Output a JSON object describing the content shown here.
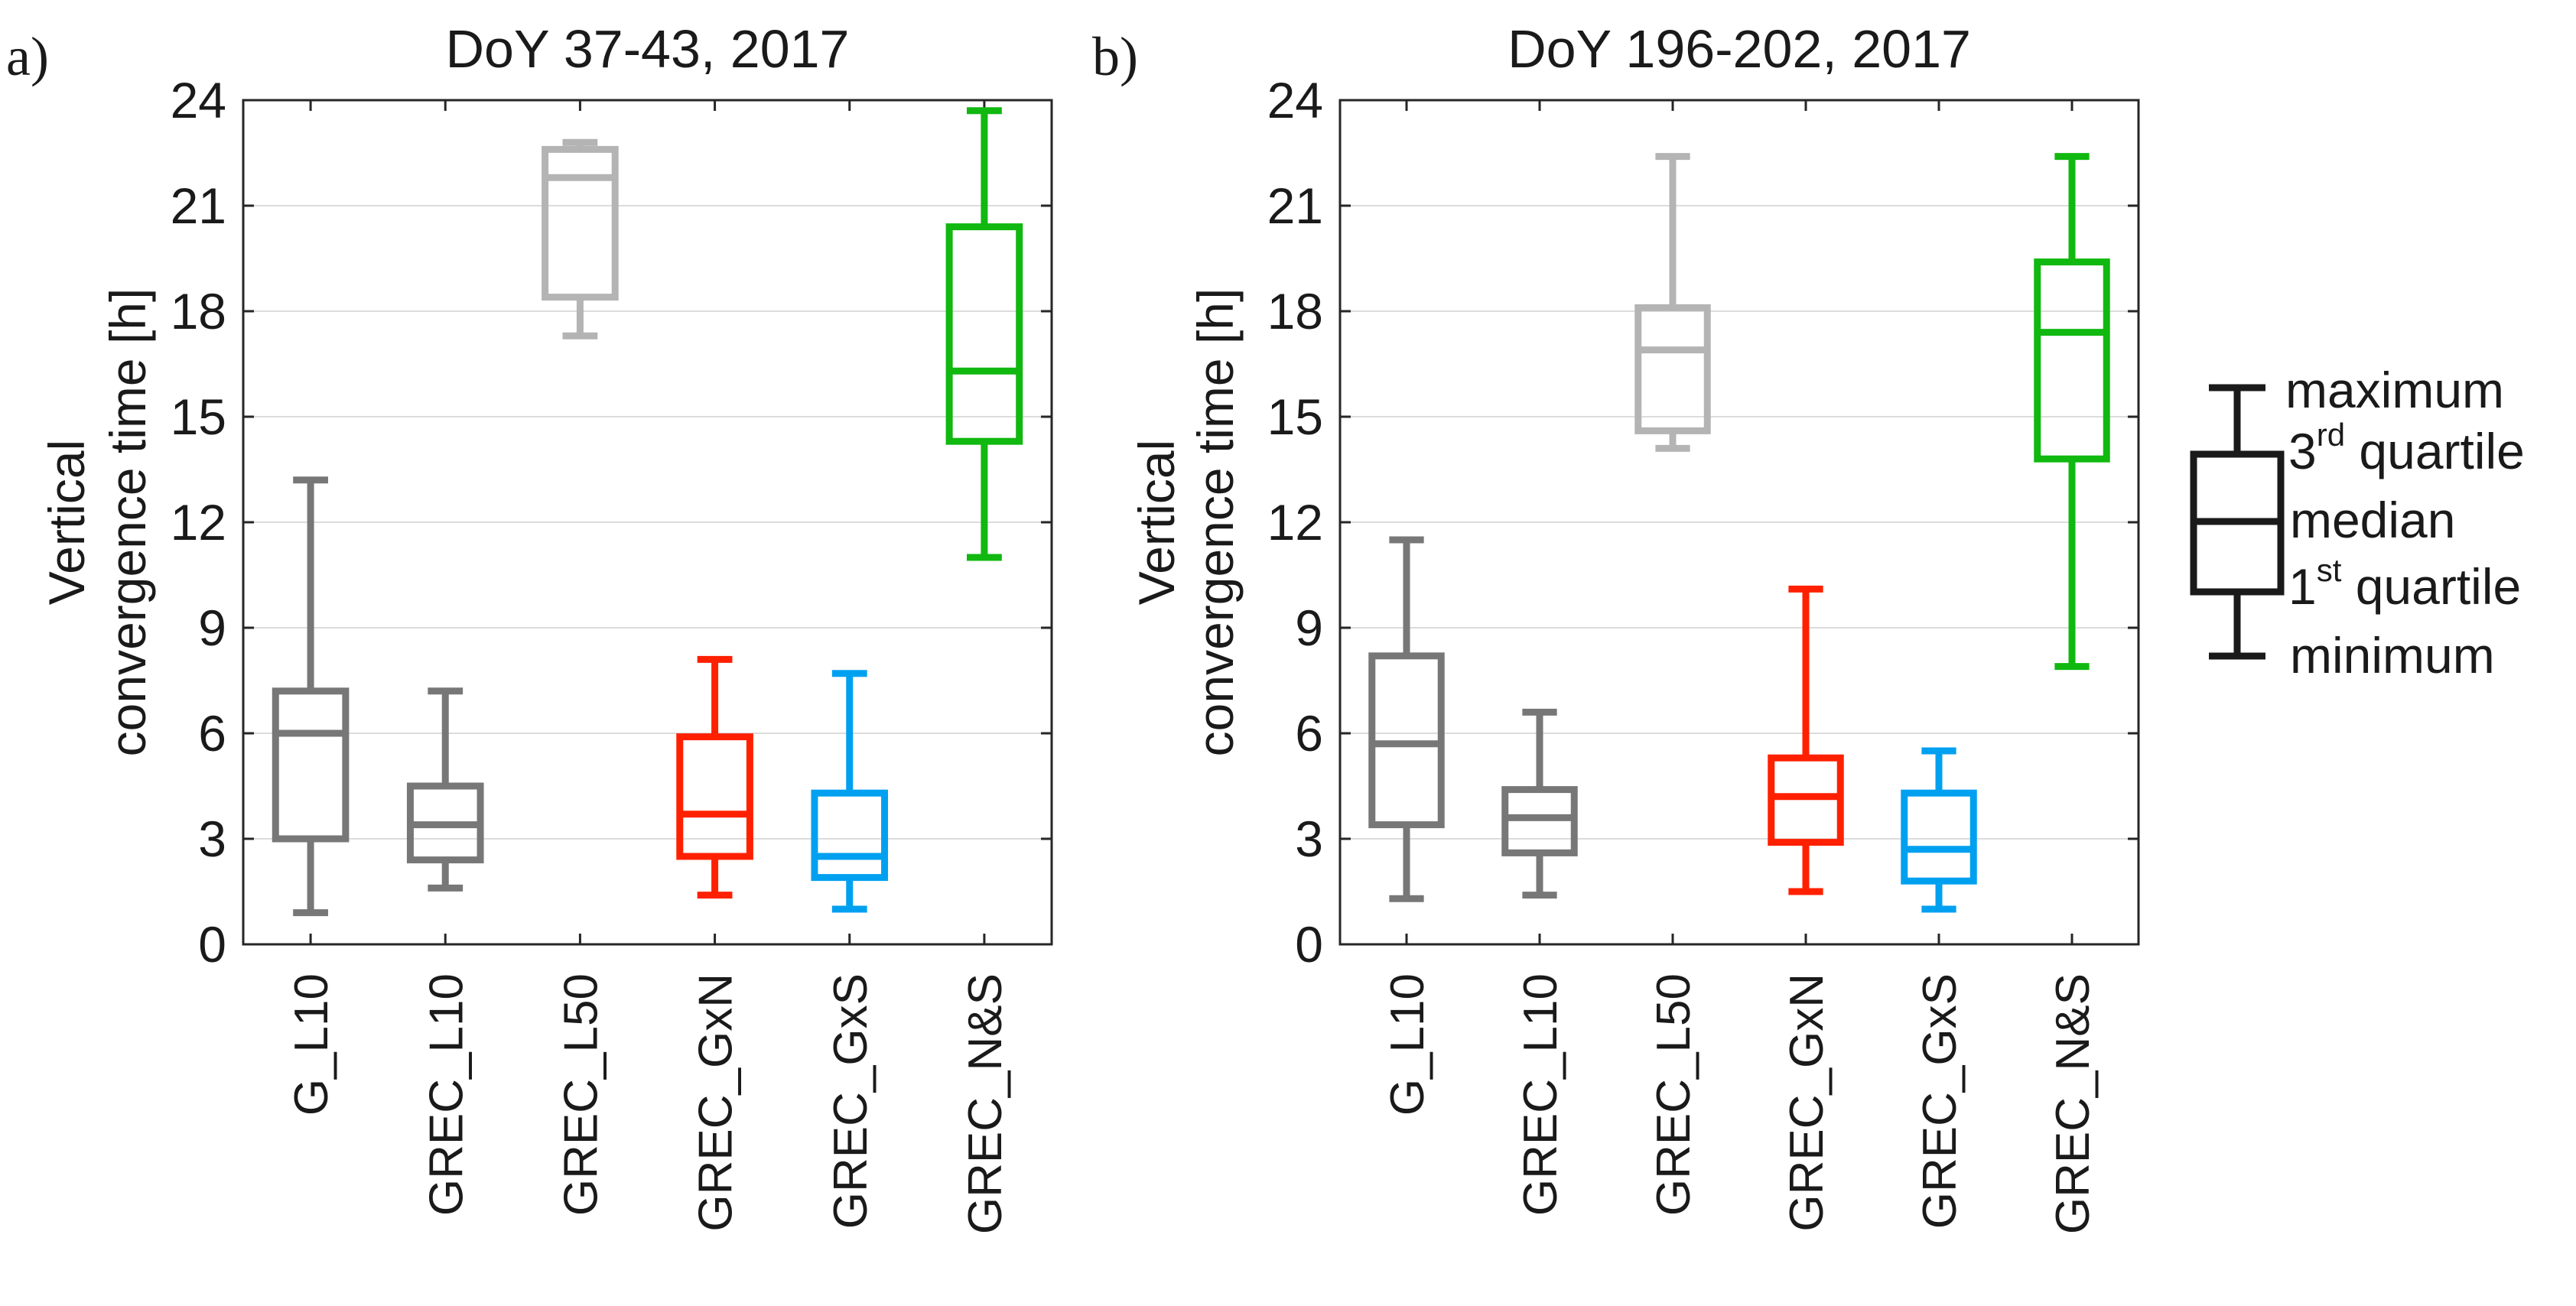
{
  "chart_data": [
    {
      "type": "box",
      "panel_label": "a)",
      "title": "DoY 37-43, 2017",
      "ylabel": [
        "Vertical",
        "convergence time [h]"
      ],
      "ylim": [
        0,
        24
      ],
      "yticks": [
        "0",
        "3",
        "6",
        "9",
        "12",
        "15",
        "18",
        "21",
        "24"
      ],
      "grid": true,
      "categories": [
        "G_L10",
        "GREC_L10",
        "GREC_L50",
        "GREC_GxN",
        "GREC_GxS",
        "GREC_N&S"
      ],
      "boxes": [
        {
          "name": "G_L10",
          "color": "#777777",
          "min": 0.9,
          "q1": 3.0,
          "median": 6.0,
          "q3": 7.2,
          "max": 13.2
        },
        {
          "name": "GREC_L10",
          "color": "#777777",
          "min": 1.6,
          "q1": 2.4,
          "median": 3.4,
          "q3": 4.5,
          "max": 7.2
        },
        {
          "name": "GREC_L50",
          "color": "#b4b4b4",
          "min": 17.3,
          "q1": 18.4,
          "median": 21.8,
          "q3": 22.6,
          "max": 22.8
        },
        {
          "name": "GREC_GxN",
          "color": "#ff2000",
          "min": 1.4,
          "q1": 2.5,
          "median": 3.7,
          "q3": 5.9,
          "max": 8.1
        },
        {
          "name": "GREC_GxS",
          "color": "#00a0f0",
          "min": 1.0,
          "q1": 1.9,
          "median": 2.5,
          "q3": 4.3,
          "max": 7.7
        },
        {
          "name": "GREC_N&S",
          "color": "#10b810",
          "min": 11.0,
          "q1": 14.3,
          "median": 16.3,
          "q3": 20.4,
          "max": 23.7
        }
      ]
    },
    {
      "type": "box",
      "panel_label": "b)",
      "title": "DoY 196-202, 2017",
      "ylabel": [
        "Vertical",
        "convergence time [h]"
      ],
      "ylim": [
        0,
        24
      ],
      "yticks": [
        "0",
        "3",
        "6",
        "9",
        "12",
        "15",
        "18",
        "21",
        "24"
      ],
      "grid": true,
      "categories": [
        "G_L10",
        "GREC_L10",
        "GREC_L50",
        "GREC_GxN",
        "GREC_GxS",
        "GREC_N&S"
      ],
      "boxes": [
        {
          "name": "G_L10",
          "color": "#777777",
          "min": 1.3,
          "q1": 3.4,
          "median": 5.7,
          "q3": 8.2,
          "max": 11.5
        },
        {
          "name": "GREC_L10",
          "color": "#777777",
          "min": 1.4,
          "q1": 2.6,
          "median": 3.6,
          "q3": 4.4,
          "max": 6.6
        },
        {
          "name": "GREC_L50",
          "color": "#b4b4b4",
          "min": 14.1,
          "q1": 14.6,
          "median": 16.9,
          "q3": 18.1,
          "max": 22.4
        },
        {
          "name": "GREC_GxN",
          "color": "#ff2000",
          "min": 1.5,
          "q1": 2.9,
          "median": 4.2,
          "q3": 5.3,
          "max": 10.1
        },
        {
          "name": "GREC_GxS",
          "color": "#00a0f0",
          "min": 1.0,
          "q1": 1.8,
          "median": 2.7,
          "q3": 4.3,
          "max": 5.5
        },
        {
          "name": "GREC_N&S",
          "color": "#10b810",
          "min": 7.9,
          "q1": 13.8,
          "median": 17.4,
          "q3": 19.4,
          "max": 22.4
        }
      ]
    }
  ],
  "legend": {
    "color": "#1a1a1a",
    "maximum": "maximum",
    "q3": {
      "num": "3",
      "sup": "rd",
      "rest": " quartile"
    },
    "median": "median",
    "q1": {
      "num": "1",
      "sup": "st",
      "rest": " quartile"
    },
    "minimum": "minimum"
  }
}
